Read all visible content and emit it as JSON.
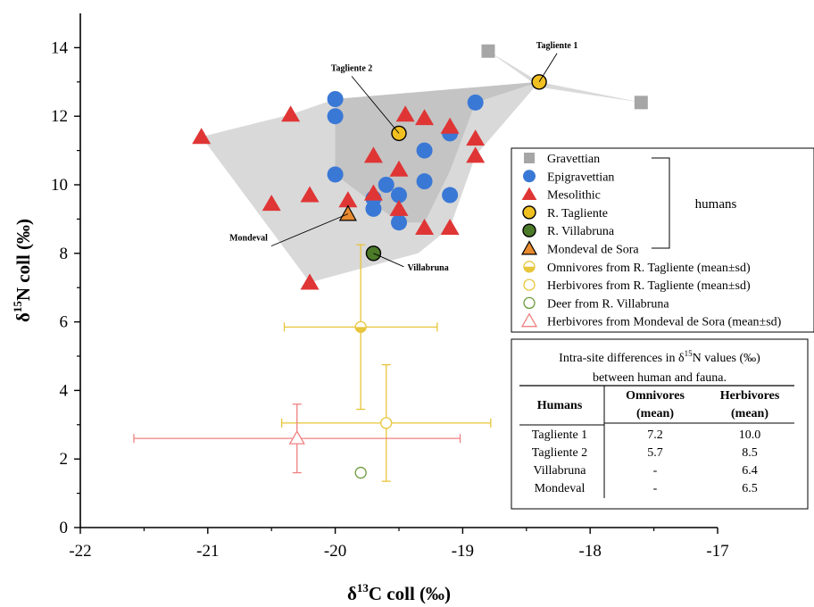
{
  "chart_data": {
    "type": "scatter",
    "xlabel": {
      "main": "δ",
      "sup": "13",
      "rest": "C coll (‰)"
    },
    "ylabel": {
      "main": "δ",
      "sup": "15",
      "rest": "N coll (‰)"
    },
    "xlim": [
      -22,
      -17
    ],
    "ylim": [
      0,
      15
    ],
    "xticks": [
      "-22",
      "-21",
      "-20",
      "-19",
      "-18",
      "-17"
    ],
    "yticks": [
      "0",
      "2",
      "4",
      "6",
      "8",
      "10",
      "12",
      "14"
    ],
    "grid": false,
    "colors": {
      "gravettian": "#a6a6a6",
      "epigravettian": "#3a78d6",
      "mesolithic": "#e03535",
      "tagliente": "#f0c020",
      "villabruna": "#4b7a28",
      "mondeval": "#e88a2e",
      "fauna_yellow": "#e8c53a",
      "fauna_green": "#6a9a3a",
      "fauna_red": "#f08080",
      "hull": "#d9d9d9",
      "hull_inner": "#c4c4c4"
    },
    "hulls": {
      "mesolithic_outer": [
        [
          -21.05,
          11.4
        ],
        [
          -20.35,
          12.05
        ],
        [
          -20.0,
          12.5
        ],
        [
          -18.4,
          13.0
        ],
        [
          -18.9,
          10.85
        ],
        [
          -19.1,
          8.75
        ],
        [
          -19.35,
          8.0
        ],
        [
          -20.2,
          7.15
        ]
      ],
      "epigravettian_inner": [
        [
          -20.0,
          12.5
        ],
        [
          -18.4,
          13.0
        ],
        [
          -18.9,
          12.4
        ],
        [
          -19.1,
          10.4
        ],
        [
          -19.3,
          8.9
        ],
        [
          -19.5,
          8.9
        ],
        [
          -20.0,
          10.3
        ]
      ],
      "gravettian": [
        [
          -18.8,
          13.9
        ],
        [
          -18.4,
          13.0
        ],
        [
          -17.6,
          12.4
        ],
        [
          -18.4,
          12.85
        ]
      ]
    },
    "series": [
      {
        "name": "Gravettian",
        "marker": "square",
        "points": [
          [
            -18.8,
            13.9
          ],
          [
            -17.6,
            12.4
          ]
        ]
      },
      {
        "name": "Epigravettian",
        "marker": "circle",
        "points": [
          [
            -20.0,
            12.5
          ],
          [
            -20.0,
            12.0
          ],
          [
            -18.9,
            12.4
          ],
          [
            -19.1,
            11.5
          ],
          [
            -19.3,
            11.0
          ],
          [
            -20.0,
            10.3
          ],
          [
            -19.3,
            10.1
          ],
          [
            -19.6,
            10.0
          ],
          [
            -19.7,
            9.6
          ],
          [
            -19.5,
            9.7
          ],
          [
            -19.1,
            9.7
          ],
          [
            -19.7,
            9.3
          ],
          [
            -19.5,
            8.9
          ]
        ]
      },
      {
        "name": "Mesolithic",
        "marker": "triangle",
        "points": [
          [
            -21.05,
            11.4
          ],
          [
            -20.35,
            12.05
          ],
          [
            -19.45,
            12.05
          ],
          [
            -19.3,
            11.95
          ],
          [
            -19.1,
            11.7
          ],
          [
            -18.9,
            11.35
          ],
          [
            -18.9,
            10.85
          ],
          [
            -19.7,
            10.85
          ],
          [
            -19.5,
            10.45
          ],
          [
            -20.2,
            9.7
          ],
          [
            -20.5,
            9.45
          ],
          [
            -19.9,
            9.55
          ],
          [
            -19.7,
            9.75
          ],
          [
            -19.5,
            9.3
          ],
          [
            -19.3,
            8.75
          ],
          [
            -19.1,
            8.75
          ],
          [
            -20.2,
            7.15
          ]
        ]
      },
      {
        "name": "R. Tagliente",
        "marker": "circle-outlined",
        "points": [
          [
            -18.4,
            13.0
          ],
          [
            -19.5,
            11.5
          ]
        ]
      },
      {
        "name": "R. Villabruna",
        "marker": "circle-outlined",
        "points": [
          [
            -19.7,
            8.0
          ]
        ]
      },
      {
        "name": "Mondeval de Sora",
        "marker": "triangle-outlined",
        "points": [
          [
            -19.9,
            9.15
          ]
        ]
      }
    ],
    "fauna": [
      {
        "name": "Omnivores from R. Tagliente (mean±sd)",
        "marker": "half-circle",
        "x": -19.8,
        "y": 5.85,
        "xerr": 0.6,
        "yerr": 2.4
      },
      {
        "name": "Herbivores from R. Tagliente (mean±sd)",
        "marker": "open-circle",
        "x": -19.6,
        "y": 3.05,
        "xerr": 0.82,
        "yerr": 1.7
      },
      {
        "name": "Deer from R. Villabruna",
        "marker": "open-circle",
        "x": -19.8,
        "y": 1.6,
        "xerr": 0,
        "yerr": 0
      },
      {
        "name": "Herbivores from Mondeval de Sora (mean±sd)",
        "marker": "open-triangle",
        "x": -20.3,
        "y": 2.6,
        "xerr": 1.28,
        "yerr": 1.0
      }
    ],
    "annotations": [
      {
        "text": "Tagliente 1",
        "x": -18.4,
        "y": 13.0
      },
      {
        "text": "Tagliente 2",
        "x": -19.5,
        "y": 11.5
      },
      {
        "text": "Mondeval",
        "x": -19.9,
        "y": 9.15
      },
      {
        "text": "Villabruna",
        "x": -19.7,
        "y": 8.0
      }
    ],
    "legend": {
      "placement": "right",
      "entries": [
        "Gravettian",
        "Epigravettian",
        "Mesolithic",
        "R. Tagliente",
        "R. Villabruna",
        "Mondeval de Sora",
        "Omnivores from R. Tagliente (mean±sd)",
        "Herbivores from R. Tagliente (mean±sd)",
        "Deer from R. Villabruna",
        "Herbivores from Mondeval de Sora (mean±sd)"
      ],
      "bracket_label": "humans"
    },
    "table": {
      "caption_parts": [
        "Intra-site differences in δ",
        "15",
        "N values (‰)"
      ],
      "caption_line2": "between human and fauna.",
      "col_humans": "Humans",
      "col_omni": [
        "Omnivores",
        "(mean)"
      ],
      "col_herb": [
        "Herbivores",
        "(mean)"
      ],
      "rows": [
        {
          "name": "Tagliente 1",
          "omni": "7.2",
          "herb": "10.0"
        },
        {
          "name": "Tagliente 2",
          "omni": "5.7",
          "herb": "8.5"
        },
        {
          "name": "Villabruna",
          "omni": "-",
          "herb": "6.4"
        },
        {
          "name": "Mondeval",
          "omni": "-",
          "herb": "6.5"
        }
      ]
    }
  }
}
